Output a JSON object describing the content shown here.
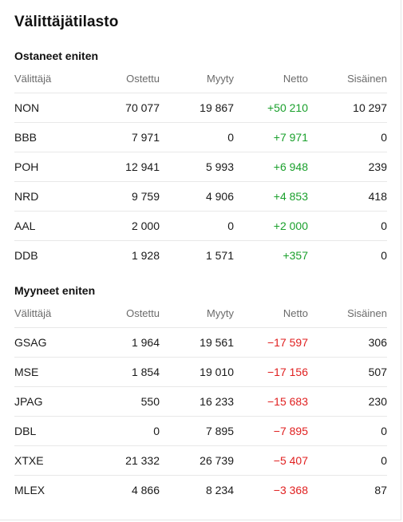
{
  "title": "Välittäjätilasto",
  "columns": [
    "Välittäjä",
    "Ostettu",
    "Myyty",
    "Netto",
    "Sisäinen"
  ],
  "bought": {
    "heading": "Ostaneet eniten",
    "rows": [
      [
        "NON",
        "70 077",
        "19 867",
        "+50 210",
        "10 297"
      ],
      [
        "BBB",
        "7 971",
        "0",
        "+7 971",
        "0"
      ],
      [
        "POH",
        "12 941",
        "5 993",
        "+6 948",
        "239"
      ],
      [
        "NRD",
        "9 759",
        "4 906",
        "+4 853",
        "418"
      ],
      [
        "AAL",
        "2 000",
        "0",
        "+2 000",
        "0"
      ],
      [
        "DDB",
        "1 928",
        "1 571",
        "+357",
        "0"
      ]
    ]
  },
  "sold": {
    "heading": "Myyneet eniten",
    "rows": [
      [
        "GSAG",
        "1 964",
        "19 561",
        "−17 597",
        "306"
      ],
      [
        "MSE",
        "1 854",
        "19 010",
        "−17 156",
        "507"
      ],
      [
        "JPAG",
        "550",
        "16 233",
        "−15 683",
        "230"
      ],
      [
        "DBL",
        "0",
        "7 895",
        "−7 895",
        "0"
      ],
      [
        "XTXE",
        "21 332",
        "26 739",
        "−5 407",
        "0"
      ],
      [
        "MLEX",
        "4 866",
        "8 234",
        "−3 368",
        "87"
      ]
    ]
  },
  "colors": {
    "positive": "#1aa02c",
    "negative": "#e02020"
  }
}
